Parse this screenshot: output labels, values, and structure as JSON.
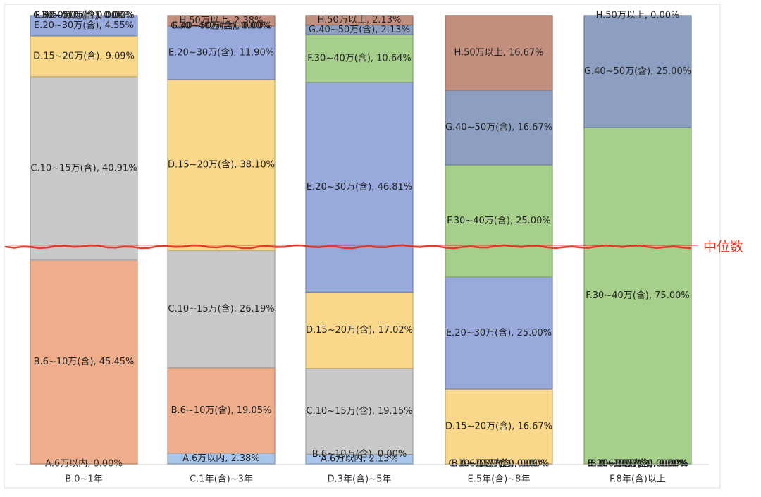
{
  "chart_data": {
    "type": "bar",
    "stacked": true,
    "normalized": true,
    "title": "",
    "xlabel": "",
    "ylabel": "",
    "ylim": [
      0,
      100
    ],
    "grid": false,
    "legend": "none",
    "categories": [
      "B.0~1年",
      "C.1年(含)~3年",
      "D.3年(含)~5年",
      "E.5年(含)~8年",
      "F.8年(含)以上"
    ],
    "series": [
      {
        "name": "A.6万以内",
        "color": "#a9c6ea",
        "values": [
          0.0,
          2.38,
          2.13,
          0.0,
          0.0
        ]
      },
      {
        "name": "B.6~10万(含)",
        "color": "#eeae8c",
        "values": [
          45.45,
          19.05,
          0.0,
          0.0,
          0.0
        ]
      },
      {
        "name": "C.10~15万(含)",
        "color": "#c9c9c9",
        "values": [
          40.91,
          26.19,
          19.15,
          0.0,
          0.0
        ]
      },
      {
        "name": "D.15~20万(含)",
        "color": "#fad88b",
        "values": [
          9.09,
          38.1,
          17.02,
          16.67,
          0.0
        ]
      },
      {
        "name": "E.20~30万(含)",
        "color": "#98a9dc",
        "values": [
          4.55,
          11.9,
          46.81,
          25.0,
          0.0
        ]
      },
      {
        "name": "F.30~40万(含)",
        "color": "#a6cf8c",
        "values": [
          0.0,
          0.0,
          10.64,
          25.0,
          75.0
        ]
      },
      {
        "name": "G.40~50万(含)",
        "color": "#8c9fc0",
        "values": [
          0.0,
          0.0,
          2.13,
          16.67,
          25.0
        ]
      },
      {
        "name": "H.50万以上",
        "color": "#c28e7e",
        "values": [
          0.0,
          2.38,
          2.13,
          16.67,
          0.0
        ]
      }
    ],
    "annotations": [
      {
        "text": "中位数",
        "color": "#e0301e"
      }
    ]
  }
}
